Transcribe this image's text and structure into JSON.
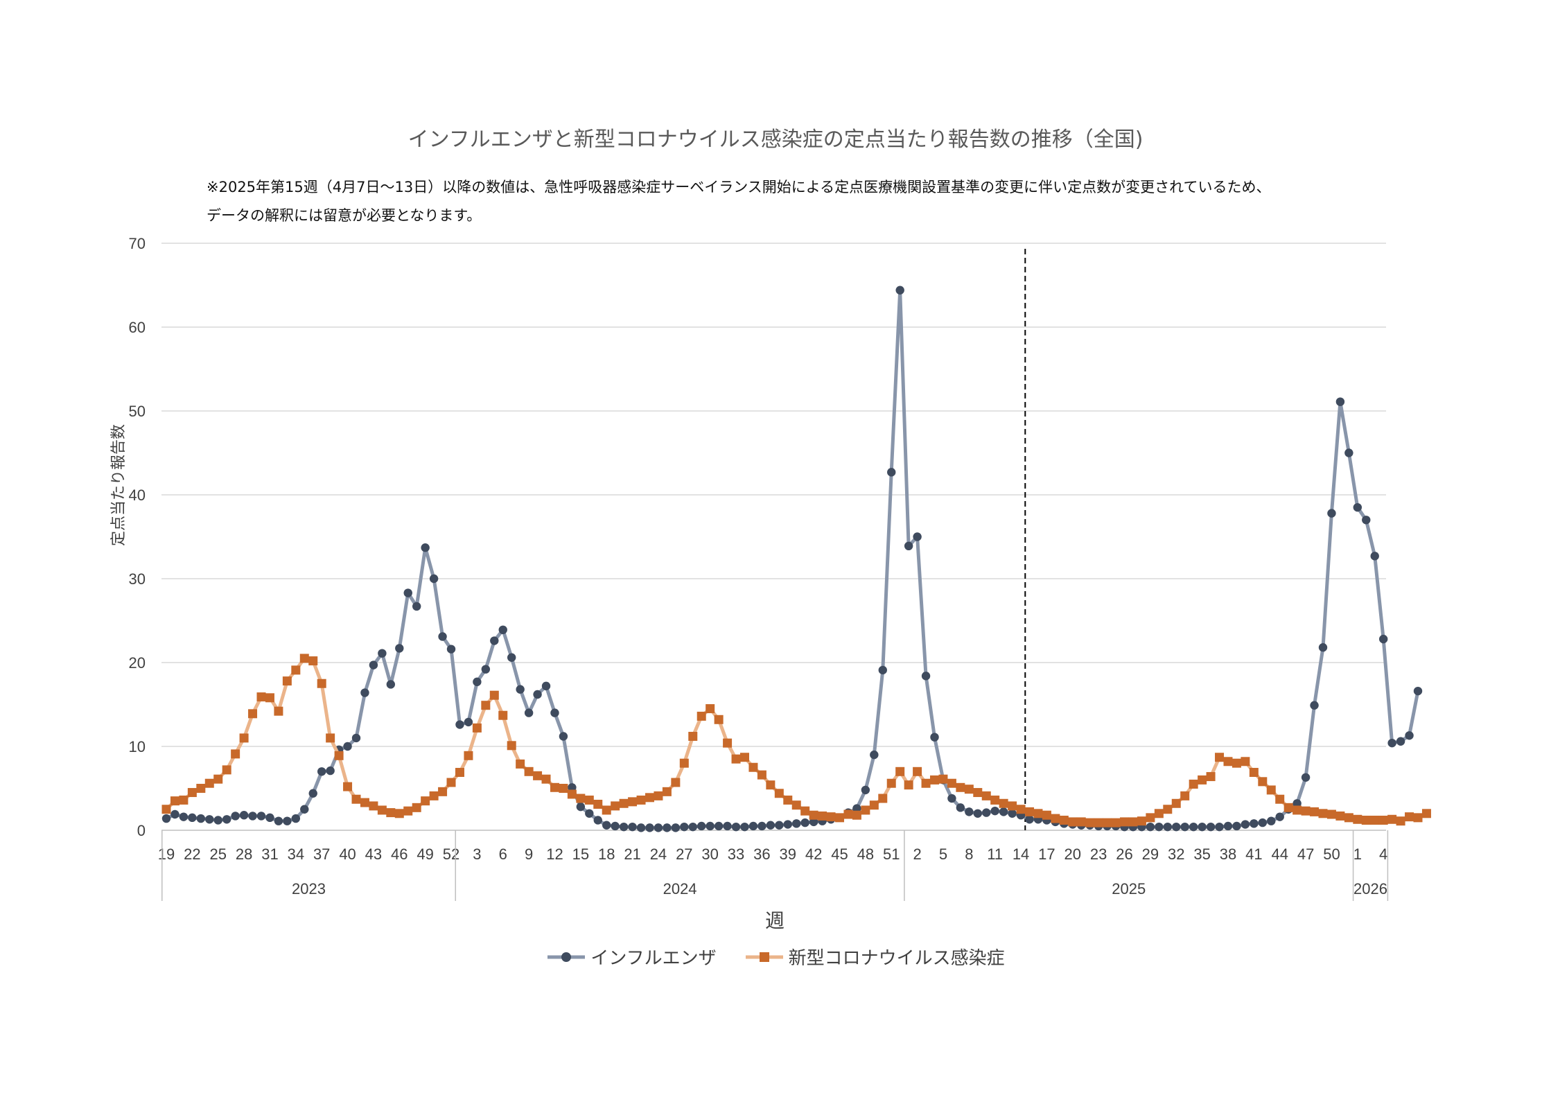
{
  "title": "インフルエンザと新型コロナウイルス感染症の定点当たり報告数の推移（全国)",
  "notes": [
    "※2025年第15週（4月7日～13日）以降の数値は、急性呼吸器感染症サーベイランス開始による定点医療機関設置基準の変更に伴い定点数が変更されているため、",
    "データの解釈には留意が必要となります。"
  ],
  "colors": {
    "flu": "#8895AA",
    "flu_marker": "#3F4B5E",
    "covid": "#EBB48A",
    "covid_marker": "#C8692A",
    "grid": "#D9D9D9",
    "axis": "#BFBFBF",
    "divider": "#000000"
  },
  "chart_data": {
    "type": "line",
    "xlabel": "週",
    "ylabel": "定点当たり報告数",
    "ylim": [
      0,
      70
    ],
    "yticks": [
      0,
      10,
      20,
      30,
      40,
      50,
      60,
      70
    ],
    "grid": true,
    "legend_position": "bottom",
    "week_tick_labels": [
      "19",
      "22",
      "25",
      "28",
      "31",
      "34",
      "37",
      "40",
      "43",
      "46",
      "49",
      "52",
      "3",
      "6",
      "9",
      "12",
      "15",
      "18",
      "21",
      "24",
      "27",
      "30",
      "33",
      "36",
      "39",
      "42",
      "45",
      "48",
      "51",
      "2",
      "5",
      "8",
      "11",
      "14",
      "17",
      "20",
      "23",
      "26",
      "29",
      "32",
      "35",
      "38",
      "41",
      "44",
      "47",
      "50",
      "1",
      "4"
    ],
    "years": [
      {
        "label": "2023",
        "first_week": 19,
        "last_week": 52
      },
      {
        "label": "2024",
        "first_week": 1,
        "last_week": 52
      },
      {
        "label": "2025",
        "first_week": 1,
        "last_week": 52
      },
      {
        "label": "2026",
        "first_week": 1,
        "last_week": 4
      }
    ],
    "divider_after": "2025 week 14",
    "series": [
      {
        "name": "インフルエンザ",
        "marker": "circle",
        "values": [
          1.4,
          1.9,
          1.6,
          1.5,
          1.4,
          1.3,
          1.2,
          1.3,
          1.7,
          1.8,
          1.7,
          1.7,
          1.5,
          1.1,
          1.1,
          1.4,
          2.5,
          4.4,
          7.0,
          7.1,
          9.6,
          10.0,
          11.0,
          16.4,
          19.7,
          21.1,
          17.4,
          21.7,
          28.3,
          26.7,
          33.7,
          30.0,
          23.1,
          21.6,
          12.6,
          12.9,
          17.7,
          19.2,
          22.6,
          23.9,
          20.6,
          16.8,
          14.0,
          16.2,
          17.2,
          14.0,
          11.2,
          5.1,
          2.8,
          2.0,
          1.2,
          0.6,
          0.5,
          0.4,
          0.4,
          0.3,
          0.3,
          0.3,
          0.3,
          0.3,
          0.4,
          0.4,
          0.5,
          0.5,
          0.5,
          0.5,
          0.4,
          0.4,
          0.5,
          0.5,
          0.6,
          0.6,
          0.7,
          0.8,
          0.9,
          1.0,
          1.1,
          1.3,
          1.5,
          2.1,
          2.6,
          4.8,
          9.0,
          19.1,
          42.7,
          64.4,
          33.9,
          35.0,
          18.4,
          11.1,
          6.0,
          3.8,
          2.7,
          2.2,
          2.0,
          2.1,
          2.3,
          2.2,
          2.0,
          1.8,
          1.3,
          1.3,
          1.2,
          1.0,
          0.8,
          0.7,
          0.6,
          0.6,
          0.5,
          0.5,
          0.5,
          0.4,
          0.4,
          0.4,
          0.4,
          0.4,
          0.4,
          0.4,
          0.4,
          0.4,
          0.4,
          0.4,
          0.4,
          0.5,
          0.5,
          0.7,
          0.8,
          0.9,
          1.1,
          1.6,
          2.5,
          3.2,
          6.3,
          14.9,
          21.8,
          37.8,
          51.1,
          45.0,
          38.5,
          37.0,
          32.7,
          22.8,
          10.4,
          10.6,
          11.3,
          16.6
        ]
      },
      {
        "name": "新型コロナウイルス感染症",
        "marker": "square",
        "values": [
          2.5,
          3.5,
          3.6,
          4.5,
          5.0,
          5.6,
          6.1,
          7.2,
          9.1,
          11.0,
          13.9,
          15.9,
          15.8,
          14.2,
          17.8,
          19.1,
          20.5,
          20.2,
          17.5,
          11.0,
          8.9,
          5.2,
          3.7,
          3.3,
          2.9,
          2.4,
          2.1,
          2.0,
          2.3,
          2.7,
          3.5,
          4.1,
          4.6,
          5.7,
          6.9,
          8.9,
          12.2,
          14.9,
          16.1,
          13.7,
          10.1,
          7.9,
          7.0,
          6.5,
          6.1,
          5.1,
          5.0,
          4.3,
          3.8,
          3.6,
          3.1,
          2.4,
          2.9,
          3.2,
          3.4,
          3.6,
          3.9,
          4.1,
          4.6,
          5.7,
          8.0,
          11.2,
          13.6,
          14.5,
          13.2,
          10.4,
          8.5,
          8.7,
          7.5,
          6.6,
          5.4,
          4.4,
          3.6,
          3.0,
          2.3,
          1.8,
          1.7,
          1.6,
          1.5,
          1.9,
          1.8,
          2.4,
          3.0,
          3.8,
          5.6,
          7.0,
          5.4,
          7.0,
          5.6,
          6.0,
          6.1,
          5.6,
          5.1,
          4.9,
          4.5,
          4.1,
          3.6,
          3.2,
          2.9,
          2.5,
          2.2,
          2.0,
          1.8,
          1.4,
          1.2,
          1.0,
          1.0,
          0.9,
          0.9,
          0.9,
          0.9,
          1.0,
          1.0,
          1.1,
          1.5,
          2.0,
          2.5,
          3.2,
          4.1,
          5.5,
          6.0,
          6.4,
          8.7,
          8.2,
          8.0,
          8.2,
          6.9,
          5.8,
          4.8,
          3.7,
          2.7,
          2.4,
          2.3,
          2.2,
          2.0,
          1.9,
          1.7,
          1.5,
          1.3,
          1.2,
          1.2,
          1.2,
          1.3,
          1.1,
          1.6,
          1.5,
          2.0
        ]
      }
    ]
  }
}
